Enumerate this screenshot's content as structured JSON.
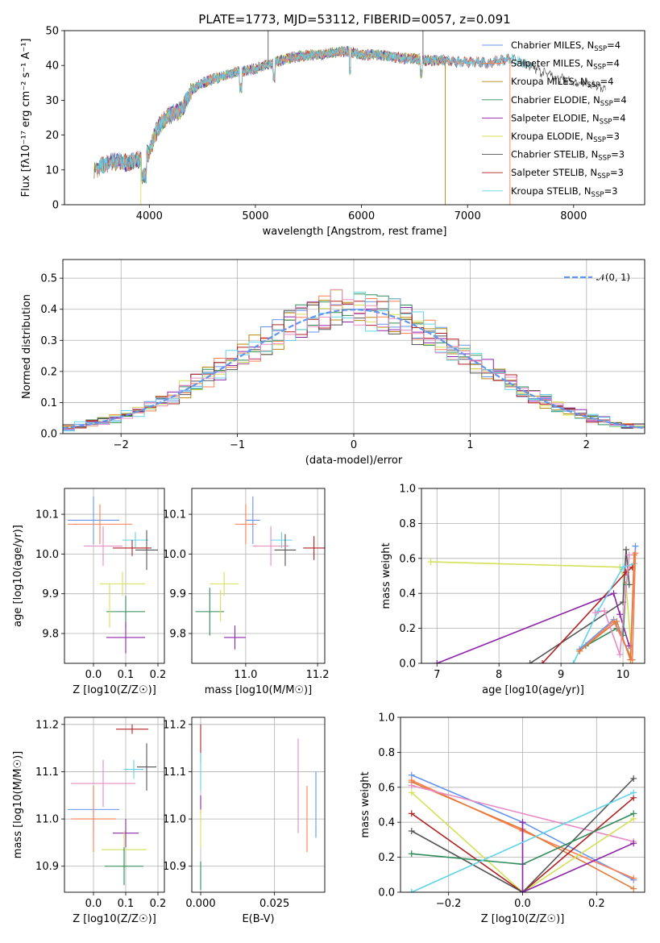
{
  "title": "PLATE=1773, MJD=53112, FIBERID=0057, z=0.091",
  "colors": {
    "Chabrier MILES": "#6495ed",
    "Salpeter MILES": "#ff7f50",
    "Kroupa MILES": "#b8860b",
    "Chabrier ELODIE": "#2e8b57",
    "Salpeter ELODIE": "#8e24aa",
    "Kroupa ELODIE": "#d4e157",
    "Chabrier STELIB": "#555555",
    "Salpeter STELIB": "#b22222",
    "Kroupa STELIB": "#5fd3e8",
    "extra_orange": "#e07b39",
    "extra_pink": "#e88bc4",
    "normal_curve": "#6495ed"
  },
  "legend": [
    {
      "label": "Chabrier MILES, N",
      "sub": "SSP",
      "suffix": "=4"
    },
    {
      "label": "Salpeter MILES, N",
      "sub": "SSP",
      "suffix": "=4"
    },
    {
      "label": "Kroupa MILES, N",
      "sub": "SSP",
      "suffix": "=4"
    },
    {
      "label": "Chabrier ELODIE, N",
      "sub": "SSP",
      "suffix": "=4"
    },
    {
      "label": "Salpeter ELODIE, N",
      "sub": "SSP",
      "suffix": "=4"
    },
    {
      "label": "Kroupa ELODIE, N",
      "sub": "SSP",
      "suffix": "=3"
    },
    {
      "label": "Chabrier STELIB, N",
      "sub": "SSP",
      "suffix": "=3"
    },
    {
      "label": "Salpeter STELIB, N",
      "sub": "SSP",
      "suffix": "=3"
    },
    {
      "label": "Kroupa STELIB, N",
      "sub": "SSP",
      "suffix": "=3"
    }
  ],
  "chart_data": [
    {
      "id": "spectrum",
      "type": "line",
      "title": "PLATE=1773, MJD=53112, FIBERID=0057, z=0.091",
      "xlabel": "wavelength [Angstrom, rest frame]",
      "ylabel": "Flux [fλ10⁻¹⁷ erg cm⁻² s⁻¹ A⁻¹]",
      "xlim": [
        3200,
        8670
      ],
      "ylim": [
        0,
        50
      ],
      "xticks": [
        4000,
        5000,
        6000,
        7000,
        8000
      ],
      "yticks": [
        0,
        10,
        20,
        30,
        40,
        50
      ],
      "grid": false,
      "legend_position": "top-right",
      "continuum": [
        [
          3480,
          10
        ],
        [
          3600,
          12
        ],
        [
          3700,
          12.5
        ],
        [
          3800,
          12
        ],
        [
          3900,
          13
        ],
        [
          4000,
          15
        ],
        [
          4050,
          20
        ],
        [
          4100,
          23
        ],
        [
          4200,
          26
        ],
        [
          4300,
          27
        ],
        [
          4400,
          33
        ],
        [
          4500,
          35
        ],
        [
          4600,
          36
        ],
        [
          4700,
          37
        ],
        [
          4800,
          38
        ],
        [
          4900,
          38.5
        ],
        [
          5000,
          39
        ],
        [
          5100,
          40
        ],
        [
          5200,
          41
        ],
        [
          5300,
          42
        ],
        [
          5400,
          42.5
        ],
        [
          5500,
          43
        ],
        [
          5600,
          43
        ],
        [
          5700,
          43.5
        ],
        [
          5800,
          44
        ],
        [
          5900,
          44
        ],
        [
          6000,
          43
        ],
        [
          6100,
          43
        ],
        [
          6200,
          43
        ],
        [
          6300,
          42.5
        ],
        [
          6400,
          42
        ],
        [
          6500,
          42
        ],
        [
          6600,
          41.5
        ],
        [
          6700,
          41.5
        ],
        [
          6800,
          41.5
        ],
        [
          6900,
          41
        ],
        [
          7000,
          41
        ],
        [
          7100,
          41
        ],
        [
          7200,
          40.5
        ],
        [
          7300,
          41.5
        ],
        [
          7400,
          42
        ],
        [
          7500,
          41
        ],
        [
          7600,
          40
        ],
        [
          7700,
          38
        ],
        [
          7800,
          37
        ],
        [
          7900,
          36
        ],
        [
          8000,
          35
        ],
        [
          8100,
          35
        ],
        [
          8200,
          34
        ],
        [
          8300,
          33
        ]
      ],
      "features": [
        {
          "name": "Chabrier STELIB spike",
          "x": 5120,
          "y": 50
        },
        {
          "name": "Chabrier STELIB spike",
          "x": 6580,
          "y": 50
        },
        {
          "name": "Kroupa MILES drop",
          "x": 6790,
          "y": 0
        },
        {
          "name": "Salpeter MILES drop",
          "x": 7400,
          "y": 0
        },
        {
          "name": "Kroupa ELODIE drop",
          "x": 3920,
          "y": 0
        }
      ]
    },
    {
      "id": "residuals",
      "type": "histogram",
      "xlabel": "(data-model)/error",
      "ylabel": "Normed distribution",
      "xlim": [
        -2.5,
        2.5
      ],
      "ylim": [
        0,
        0.56
      ],
      "xticks": [
        -2,
        -1,
        0,
        1,
        2
      ],
      "yticks": [
        0.0,
        0.1,
        0.2,
        0.3,
        0.4,
        0.5
      ],
      "grid": true,
      "legend": "𝒩(0, 1)",
      "legend_position": "top-right",
      "bin_width": 0.1,
      "normal_mean": 0,
      "normal_sigma": 1
    },
    {
      "id": "age_vs_Z",
      "type": "errorbar",
      "xlabel": "Z [log10(Z/Z☉)]",
      "ylabel": "age  [log10(age/yr)]",
      "xlim": [
        -0.09,
        0.22
      ],
      "ylim": [
        9.725,
        10.165
      ],
      "xticks": [
        0.0,
        0.1,
        0.2
      ],
      "yticks": [
        9.8,
        9.9,
        10.0,
        10.1
      ],
      "grid": true,
      "points": [
        {
          "series": "Chabrier MILES",
          "x": -0.0,
          "y": 10.085,
          "xerr": 0.08,
          "yerr": 0.06
        },
        {
          "series": "Salpeter MILES",
          "x": 0.02,
          "y": 10.075,
          "xerr": 0.1,
          "yerr": 0.05
        },
        {
          "series": "Kroupa STELIB",
          "x": 0.13,
          "y": 10.035,
          "xerr": 0.04,
          "yerr": 0.02
        },
        {
          "series": "Chabrier STELIB",
          "x": 0.165,
          "y": 10.01,
          "xerr": 0.035,
          "yerr": 0.05
        },
        {
          "series": "Salpeter STELIB",
          "x": 0.12,
          "y": 10.015,
          "xerr": 0.06,
          "yerr": 0.02
        },
        {
          "series": "extra_pink",
          "x": 0.03,
          "y": 10.02,
          "xerr": 0.06,
          "yerr": 0.05
        },
        {
          "series": "Kroupa ELODIE",
          "x": 0.09,
          "y": 9.925,
          "xerr": 0.07,
          "yerr": 0.03
        },
        {
          "series": "Chabrier ELODIE",
          "x": 0.1,
          "y": 9.855,
          "xerr": 0.06,
          "yerr": 0.04
        },
        {
          "series": "Kroupa ELODIE",
          "x": 0.05,
          "y": 9.87,
          "xerr": 0.0,
          "yerr": 0.055
        },
        {
          "series": "Salpeter ELODIE",
          "x": 0.1,
          "y": 9.79,
          "xerr": 0.06,
          "yerr": 0.04
        }
      ]
    },
    {
      "id": "age_vs_mass",
      "type": "errorbar",
      "xlabel": "mass [log10(M/M☉)]",
      "ylabel": "",
      "xlim": [
        10.85,
        11.22
      ],
      "ylim": [
        9.725,
        10.165
      ],
      "xticks": [
        11.0,
        11.2
      ],
      "yticks": [
        9.8,
        9.9,
        10.0,
        10.1
      ],
      "grid": true,
      "points": [
        {
          "series": "Chabrier MILES",
          "x": 11.02,
          "y": 10.085,
          "xerr": 0.02,
          "yerr": 0.06
        },
        {
          "series": "Salpeter MILES",
          "x": 11.0,
          "y": 10.075,
          "xerr": 0.03,
          "yerr": 0.05
        },
        {
          "series": "Kroupa STELIB",
          "x": 11.1,
          "y": 10.035,
          "xerr": 0.03,
          "yerr": 0.02
        },
        {
          "series": "Chabrier STELIB",
          "x": 11.11,
          "y": 10.01,
          "xerr": 0.03,
          "yerr": 0.04
        },
        {
          "series": "Salpeter STELIB",
          "x": 11.19,
          "y": 10.015,
          "xerr": 0.03,
          "yerr": 0.03
        },
        {
          "series": "extra_pink",
          "x": 11.07,
          "y": 10.02,
          "xerr": 0.05,
          "yerr": 0.05
        },
        {
          "series": "Kroupa ELODIE",
          "x": 10.94,
          "y": 9.925,
          "xerr": 0.04,
          "yerr": 0.03
        },
        {
          "series": "Chabrier ELODIE",
          "x": 10.9,
          "y": 9.855,
          "xerr": 0.04,
          "yerr": 0.06
        },
        {
          "series": "Kroupa ELODIE",
          "x": 10.93,
          "y": 9.87,
          "xerr": 0.0,
          "yerr": 0.04
        },
        {
          "series": "Salpeter ELODIE",
          "x": 10.97,
          "y": 9.79,
          "xerr": 0.03,
          "yerr": 0.03
        }
      ]
    },
    {
      "id": "weight_vs_age",
      "type": "line",
      "xlabel": "age  [log10(age/yr)]",
      "ylabel": "mass weight",
      "xlim": [
        6.75,
        10.35
      ],
      "ylim": [
        0,
        1.0
      ],
      "xticks": [
        7,
        8,
        9,
        10
      ],
      "yticks": [
        0.0,
        0.2,
        0.4,
        0.6,
        0.8,
        1.0
      ],
      "grid": true,
      "series": [
        {
          "name": "Kroupa ELODIE",
          "x": [
            6.9,
            9.95,
            10.05,
            10.15
          ],
          "y": [
            0.58,
            0.55,
            0.45,
            0.0
          ]
        },
        {
          "name": "Salpeter ELODIE",
          "x": [
            7.0,
            9.85,
            9.95,
            10.1
          ],
          "y": [
            0.0,
            0.4,
            0.28,
            0.1
          ]
        },
        {
          "name": "Chabrier STELIB",
          "x": [
            8.5,
            10.0,
            10.05,
            10.1
          ],
          "y": [
            0.0,
            0.35,
            0.65,
            0.45
          ]
        },
        {
          "name": "Salpeter STELIB",
          "x": [
            8.7,
            10.05,
            10.15
          ],
          "y": [
            0.0,
            0.52,
            0.55
          ]
        },
        {
          "name": "Kroupa STELIB",
          "x": [
            9.2,
            9.6,
            10.0,
            10.18
          ],
          "y": [
            0.0,
            0.3,
            0.55,
            0.57
          ]
        },
        {
          "name": "Chabrier ELODIE",
          "x": [
            9.4,
            9.9,
            10.0,
            10.05
          ],
          "y": [
            0.1,
            0.2,
            0.16,
            0.45
          ]
        },
        {
          "name": "Chabrier MILES",
          "x": [
            9.3,
            9.85,
            10.15,
            10.2
          ],
          "y": [
            0.08,
            0.25,
            0.02,
            0.67
          ]
        },
        {
          "name": "Salpeter MILES",
          "x": [
            9.3,
            9.85,
            10.15,
            10.2
          ],
          "y": [
            0.07,
            0.24,
            0.02,
            0.63
          ]
        },
        {
          "name": "extra_orange",
          "x": [
            9.3,
            9.9,
            10.12,
            10.18
          ],
          "y": [
            0.07,
            0.24,
            0.02,
            0.62
          ]
        },
        {
          "name": "extra_pink",
          "x": [
            9.55,
            9.7,
            9.95,
            10.1
          ],
          "y": [
            0.29,
            0.3,
            0.05,
            0.62
          ]
        }
      ]
    },
    {
      "id": "mass_vs_Z",
      "type": "errorbar",
      "xlabel": "Z [log10(Z/Z☉)]",
      "ylabel": "mass [log10(M/M☉)]",
      "xlim": [
        -0.09,
        0.22
      ],
      "ylim": [
        10.845,
        11.215
      ],
      "xticks": [
        0.0,
        0.1,
        0.2
      ],
      "yticks": [
        10.9,
        11.0,
        11.1,
        11.2
      ],
      "grid": true,
      "points": [
        {
          "series": "Salpeter STELIB",
          "x": 0.12,
          "y": 11.19,
          "xerr": 0.05,
          "yerr": 0.01
        },
        {
          "series": "Chabrier STELIB",
          "x": 0.165,
          "y": 11.11,
          "xerr": 0.03,
          "yerr": 0.05
        },
        {
          "series": "Kroupa STELIB",
          "x": 0.125,
          "y": 11.105,
          "xerr": 0.03,
          "yerr": 0.02
        },
        {
          "series": "extra_pink",
          "x": 0.03,
          "y": 11.075,
          "xerr": 0.1,
          "yerr": 0.05
        },
        {
          "series": "Chabrier MILES",
          "x": -0.0,
          "y": 11.02,
          "xerr": 0.08,
          "yerr": 0.05
        },
        {
          "series": "Salpeter MILES",
          "x": 0.0,
          "y": 11.0,
          "xerr": 0.07,
          "yerr": 0.07
        },
        {
          "series": "Salpeter ELODIE",
          "x": 0.1,
          "y": 10.97,
          "xerr": 0.04,
          "yerr": 0.03
        },
        {
          "series": "Kroupa ELODIE",
          "x": 0.095,
          "y": 10.935,
          "xerr": 0.07,
          "yerr": 0.04
        },
        {
          "series": "Chabrier ELODIE",
          "x": 0.095,
          "y": 10.9,
          "xerr": 0.06,
          "yerr": 0.04
        }
      ]
    },
    {
      "id": "mass_vs_EBV",
      "type": "errorbar",
      "xlabel": "E(B-V)",
      "ylabel": "",
      "xlim": [
        -0.003,
        0.042
      ],
      "ylim": [
        10.845,
        11.215
      ],
      "xticks": [
        0.0,
        0.025
      ],
      "xticklabels": [
        "0.000",
        "0.025"
      ],
      "yticks": [
        10.9,
        11.0,
        11.1,
        11.2
      ],
      "grid": true,
      "points": [
        {
          "series": "Salpeter STELIB",
          "x": 0.0,
          "y": 11.16,
          "xerr": 0,
          "yerr": 0.04
        },
        {
          "series": "Kroupa STELIB",
          "x": 0.0,
          "y": 11.1,
          "xerr": 0,
          "yerr": 0.04
        },
        {
          "series": "Salpeter ELODIE",
          "x": 0.0,
          "y": 11.03,
          "xerr": 0,
          "yerr": 0.02
        },
        {
          "series": "Kroupa ELODIE",
          "x": 0.0,
          "y": 10.98,
          "xerr": 0,
          "yerr": 0.04
        },
        {
          "series": "Chabrier ELODIE",
          "x": 0.0,
          "y": 10.88,
          "xerr": 0,
          "yerr": 0.03
        },
        {
          "series": "extra_pink",
          "x": 0.033,
          "y": 11.07,
          "xerr": 0,
          "yerr": 0.1
        },
        {
          "series": "Salpeter MILES",
          "x": 0.036,
          "y": 11.0,
          "xerr": 0,
          "yerr": 0.07
        },
        {
          "series": "Chabrier MILES",
          "x": 0.039,
          "y": 11.03,
          "xerr": 0,
          "yerr": 0.07
        }
      ]
    },
    {
      "id": "weight_vs_Z",
      "type": "line",
      "xlabel": "Z [log10(Z/Z☉)]",
      "ylabel": "mass weight",
      "xlim": [
        -0.33,
        0.33
      ],
      "ylim": [
        0,
        1.0
      ],
      "xticks": [
        -0.2,
        0.0,
        0.2
      ],
      "xticklabels": [
        "−0.2",
        "0.0",
        "0.2"
      ],
      "yticks": [
        0.0,
        0.2,
        0.4,
        0.6,
        0.8,
        1.0
      ],
      "grid": true,
      "series": [
        {
          "name": "Chabrier MILES",
          "x": [
            -0.3,
            0.0,
            0.3
          ],
          "y": [
            0.67,
            0.4,
            0.07
          ]
        },
        {
          "name": "Salpeter MILES",
          "x": [
            -0.3,
            0.0,
            0.3
          ],
          "y": [
            0.64,
            0.35,
            0.08
          ]
        },
        {
          "name": "extra_orange",
          "x": [
            -0.3,
            0.0,
            0.3
          ],
          "y": [
            0.63,
            0.36,
            0.02
          ]
        },
        {
          "name": "extra_pink",
          "x": [
            -0.3,
            0.3
          ],
          "y": [
            0.61,
            0.29
          ]
        },
        {
          "name": "Kroupa ELODIE",
          "x": [
            -0.3,
            0.0,
            0.3
          ],
          "y": [
            0.57,
            0.0,
            0.42
          ]
        },
        {
          "name": "Salpeter STELIB",
          "x": [
            -0.3,
            0.0,
            0.3
          ],
          "y": [
            0.45,
            0.0,
            0.54
          ]
        },
        {
          "name": "Chabrier STELIB",
          "x": [
            -0.3,
            0.0,
            0.3
          ],
          "y": [
            0.35,
            0.0,
            0.65
          ]
        },
        {
          "name": "Chabrier ELODIE",
          "x": [
            -0.3,
            0.0,
            0.3
          ],
          "y": [
            0.22,
            0.16,
            0.45
          ]
        },
        {
          "name": "Salpeter ELODIE",
          "x": [
            -0.0,
            0.0,
            0.3
          ],
          "y": [
            0.4,
            0.0,
            0.28
          ]
        },
        {
          "name": "Kroupa STELIB",
          "x": [
            -0.3,
            -0.3,
            0.3
          ],
          "y": [
            0.0,
            0.0,
            0.57
          ]
        }
      ]
    }
  ]
}
